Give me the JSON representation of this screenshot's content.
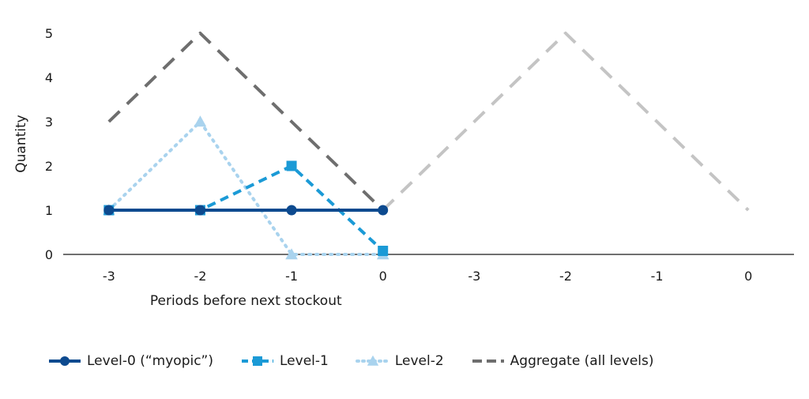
{
  "chart_data": {
    "type": "line",
    "xlabel": "Periods before next stockout",
    "ylabel": "Quantity",
    "ylim": [
      0,
      5
    ],
    "yticks": [
      "0",
      "1",
      "2",
      "3",
      "4",
      "5"
    ],
    "categories": [
      "-3",
      "-2",
      "-1",
      "0",
      "-3",
      "-2",
      "-1",
      "0"
    ],
    "grid": false,
    "legend_position": "bottom",
    "series": [
      {
        "name": "Level-0 (“myopic”)",
        "color": "#0d4a8f",
        "style": "solid",
        "marker": "circle",
        "values": [
          1,
          1,
          1,
          1,
          null,
          null,
          null,
          null
        ]
      },
      {
        "name": "Level-1",
        "color": "#1b9ad6",
        "style": "dashed",
        "marker": "square",
        "values": [
          1,
          1,
          2,
          0.08,
          null,
          null,
          null,
          null
        ]
      },
      {
        "name": "Level-2",
        "color": "#a9d3ee",
        "style": "dotted",
        "marker": "triangle",
        "values": [
          1,
          3,
          0,
          0,
          null,
          null,
          null,
          null
        ]
      },
      {
        "name": "Aggregate (all levels)",
        "color": "#6e6e6e",
        "style": "longdash",
        "marker": "none",
        "values": [
          3,
          5,
          3,
          1,
          null,
          null,
          null,
          null
        ]
      },
      {
        "name": "",
        "color": "#c4c4c4",
        "style": "longdash",
        "marker": "none",
        "show_in_legend": false,
        "values": [
          null,
          null,
          null,
          1,
          3,
          5,
          3,
          1
        ]
      }
    ]
  }
}
